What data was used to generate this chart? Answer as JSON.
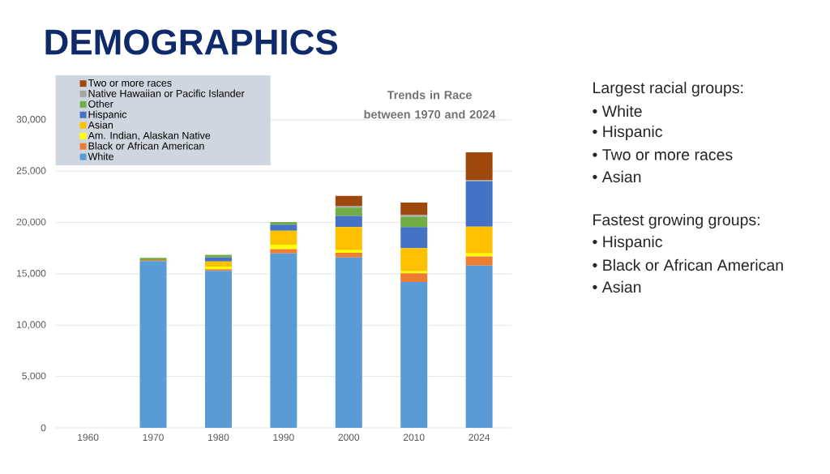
{
  "chart_data": {
    "type": "bar",
    "title": "DEMOGRAPHICS",
    "subtitle": "Trends in Race between 1970 and 2024",
    "categories": [
      "1960",
      "1970",
      "1980",
      "1990",
      "2000",
      "2010",
      "2024"
    ],
    "stacked": true,
    "series": [
      {
        "name": "White",
        "color": "#5b9bd5",
        "values": [
          null,
          16250,
          15300,
          17000,
          16600,
          14200,
          15800
        ]
      },
      {
        "name": "Black or African American",
        "color": "#ed7d31",
        "values": [
          null,
          100,
          150,
          400,
          450,
          850,
          900
        ]
      },
      {
        "name": "Am. Indian, Alaskan Native",
        "color": "#ffff00",
        "values": [
          null,
          0,
          250,
          450,
          250,
          200,
          300
        ]
      },
      {
        "name": "Asian",
        "color": "#ffc000",
        "values": [
          null,
          0,
          500,
          1350,
          2250,
          2250,
          2600
        ]
      },
      {
        "name": "Hispanic",
        "color": "#4472c4",
        "values": [
          null,
          0,
          400,
          600,
          1100,
          2050,
          4400
        ]
      },
      {
        "name": "Other",
        "color": "#70ad47",
        "values": [
          null,
          200,
          250,
          250,
          800,
          1000,
          0
        ]
      },
      {
        "name": "Native Hawaiian or Pacific Islander",
        "color": "#a5a5a5",
        "values": [
          null,
          0,
          0,
          0,
          150,
          200,
          150
        ]
      },
      {
        "name": "Two or more races",
        "color": "#9e480e",
        "values": [
          null,
          0,
          0,
          0,
          1000,
          1200,
          2700
        ]
      }
    ],
    "ylim": [
      0,
      30000
    ],
    "yticks": [
      0,
      {
        "value": 5000,
        "label": "5,000"
      },
      {
        "value": 10000,
        "label": "10,000"
      },
      {
        "value": 15000,
        "label": "15,000"
      },
      {
        "value": 20000,
        "label": "20,000"
      },
      {
        "value": 25000,
        "label": "25,000"
      },
      {
        "value": 30000,
        "label": "30,000"
      }
    ],
    "grid": "y",
    "legend": "top left",
    "annotations": [
      "Largest racial groups:",
      "•  White",
      "•  Hispanic",
      "•  Two or more races",
      "•  Asian",
      "Fastest growing groups:",
      "•  Hispanic",
      "•  Black or African American",
      "•  Asian"
    ]
  }
}
